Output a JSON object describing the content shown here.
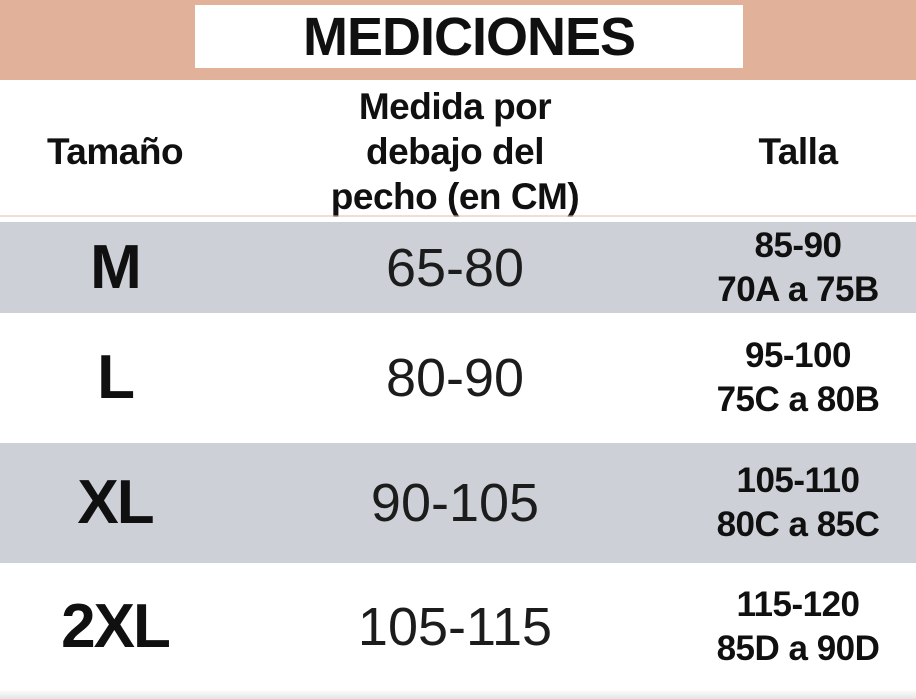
{
  "title": "MEDICIONES",
  "colors": {
    "banner_background": "#E1B19A",
    "alt_row_background": "#CDD0D6",
    "text": "#101010"
  },
  "table": {
    "headers": {
      "size": "Tamaño",
      "measure_line1": "Medida por",
      "measure_line2": "debajo del",
      "measure_line3": "pecho (en CM)",
      "talla": "Talla"
    },
    "rows": [
      {
        "size": "M",
        "underbust_cm": "65-80",
        "talla_line1": "85-90",
        "talla_line2": "70A a 75B"
      },
      {
        "size": "L",
        "underbust_cm": "80-90",
        "talla_line1": "95-100",
        "talla_line2": "75C a 80B"
      },
      {
        "size": "XL",
        "underbust_cm": "90-105",
        "talla_line1": "105-110",
        "talla_line2": "80C a 85C"
      },
      {
        "size": "2XL",
        "underbust_cm": "105-115",
        "talla_line1": "115-120",
        "talla_line2": "85D a 90D"
      }
    ]
  },
  "chart_data": {
    "type": "table",
    "title": "MEDICIONES",
    "columns": [
      "Tamaño",
      "Medida por debajo del pecho (en CM)",
      "Talla"
    ],
    "rows": [
      [
        "M",
        "65-80",
        "85-90, 70A a 75B"
      ],
      [
        "L",
        "80-90",
        "95-100, 75C a 80B"
      ],
      [
        "XL",
        "90-105",
        "105-110, 80C a 85C"
      ],
      [
        "2XL",
        "105-115",
        "115-120, 85D a 90D"
      ]
    ]
  }
}
